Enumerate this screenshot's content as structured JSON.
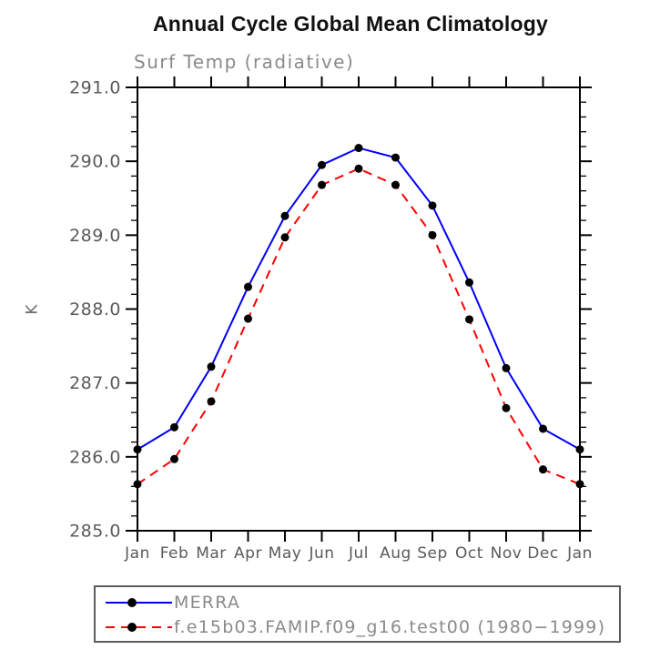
{
  "chart_data": {
    "type": "line",
    "title": "Annual Cycle Global Mean Climatology",
    "subtitle": "Surf Temp (radiative)",
    "xlabel": "",
    "ylabel": "K",
    "ylim": [
      285.0,
      291.0
    ],
    "y_major_step": 1.0,
    "y_minor_step": 0.2,
    "y_tick_labels": [
      "285.0",
      "286.0",
      "287.0",
      "288.0",
      "289.0",
      "290.0",
      "291.0"
    ],
    "x_tick_labels": [
      "Jan",
      "Feb",
      "Mar",
      "Apr",
      "May",
      "Jun",
      "Jul",
      "Aug",
      "Sep",
      "Oct",
      "Nov",
      "Dec",
      "Jan"
    ],
    "grid": false,
    "legend_position": "below",
    "axis_color": "#000000",
    "marker_color": "#000000",
    "series": [
      {
        "name": "MERRA",
        "color": "#0000ff",
        "line_style": "solid",
        "marker": "filled-black-circle",
        "values": [
          286.1,
          286.4,
          287.22,
          288.3,
          289.26,
          289.95,
          290.18,
          290.05,
          289.4,
          288.36,
          287.2,
          286.38,
          286.1
        ]
      },
      {
        "name": "f.e15b03.FAMIP.f09_g16.test00 (1980−1999)",
        "color": "#ff0000",
        "line_style": "dashed",
        "marker": "filled-black-circle",
        "values": [
          285.63,
          285.97,
          286.75,
          287.87,
          288.97,
          289.68,
          289.9,
          289.68,
          289.0,
          287.86,
          286.66,
          285.83,
          285.63
        ]
      }
    ]
  }
}
